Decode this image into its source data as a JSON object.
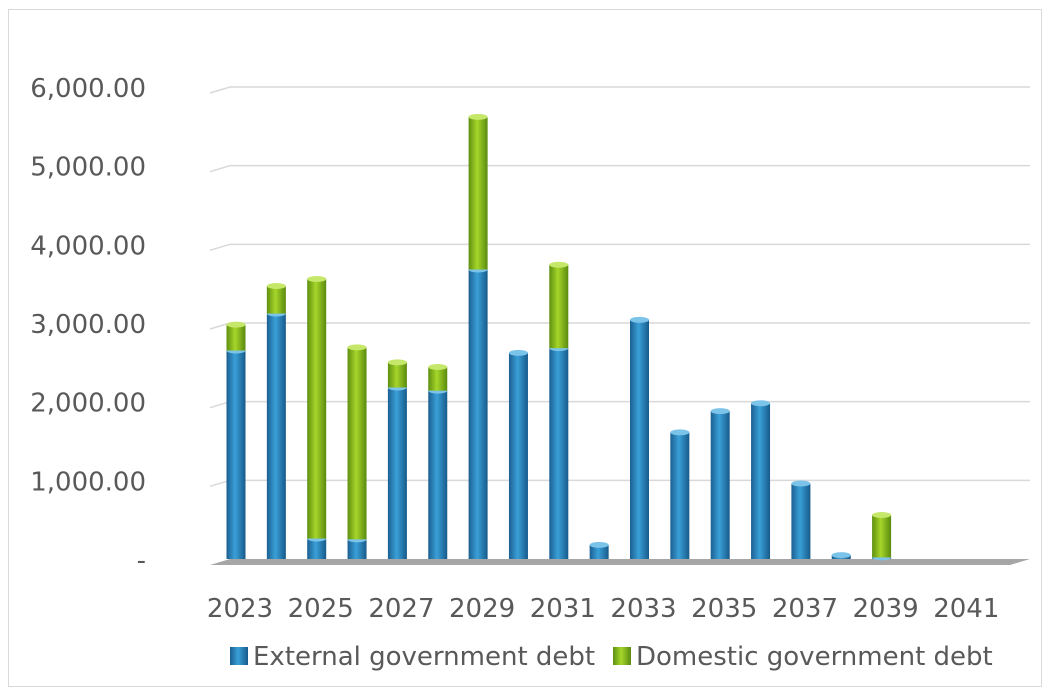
{
  "chart_data": {
    "type": "bar",
    "stacked": true,
    "categories": [
      "2023",
      "2024",
      "2025",
      "2026",
      "2027",
      "2028",
      "2029",
      "2030",
      "2031",
      "2032",
      "2033",
      "2034",
      "2035",
      "2036",
      "2037",
      "2038",
      "2039",
      "2040",
      "2041",
      "2042"
    ],
    "x_tick_labels": [
      "2023",
      "2025",
      "2027",
      "2029",
      "2031",
      "2033",
      "2035",
      "2037",
      "2039",
      "2041"
    ],
    "series": [
      {
        "name": "External government debt",
        "color": "#1f77b4",
        "values": [
          2650,
          3120,
          260,
          250,
          2180,
          2140,
          3680,
          2620,
          2680,
          180,
          3040,
          1610,
          1880,
          1980,
          960,
          50,
          20,
          0,
          0,
          0
        ]
      },
      {
        "name": "Domestic government debt",
        "color": "#84b818",
        "values": [
          330,
          350,
          3300,
          2440,
          320,
          300,
          1940,
          0,
          1060,
          0,
          0,
          0,
          0,
          0,
          0,
          0,
          540,
          0,
          0,
          0
        ]
      }
    ],
    "ylim": [
      0,
      6000
    ],
    "y_ticks": [
      0,
      1000,
      2000,
      3000,
      4000,
      5000,
      6000
    ],
    "y_tick_labels": [
      "-",
      "1,000.00",
      "2,000.00",
      "3,000.00",
      "4,000.00",
      "5,000.00",
      "6,000.00"
    ],
    "grid": true,
    "legend": "bottom"
  }
}
